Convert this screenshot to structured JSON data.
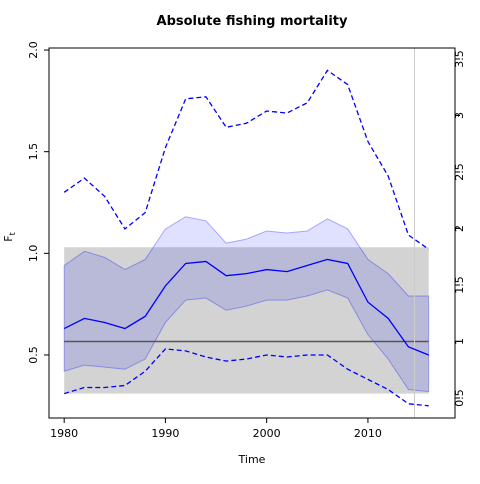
{
  "chart_data": {
    "type": "line",
    "title": "Absolute fishing mortality",
    "xlabel": "Time",
    "ylabel": "F",
    "ylabel_sub": "t",
    "x": [
      1980,
      1982,
      1984,
      1986,
      1988,
      1990,
      1992,
      1994,
      1996,
      1998,
      2000,
      2002,
      2004,
      2006,
      2008,
      2010,
      2012,
      2014,
      2016
    ],
    "series": [
      {
        "color": "#0000ff",
        "style": "solid",
        "values": [
          0.63,
          0.68,
          0.66,
          0.63,
          0.69,
          0.84,
          0.95,
          0.96,
          0.89,
          0.9,
          0.92,
          0.91,
          0.94,
          0.97,
          0.95,
          0.76,
          0.68,
          0.54,
          0.5
        ]
      },
      {
        "color": "#0000ff",
        "style": "dashed",
        "values": [
          1.3,
          1.37,
          1.28,
          1.12,
          1.2,
          1.52,
          1.76,
          1.77,
          1.62,
          1.64,
          1.7,
          1.69,
          1.74,
          1.9,
          1.83,
          1.55,
          1.38,
          1.09,
          1.02
        ]
      },
      {
        "color": "#0000ff",
        "style": "dashed",
        "values": [
          0.31,
          0.34,
          0.34,
          0.35,
          0.42,
          0.53,
          0.52,
          0.49,
          0.47,
          0.48,
          0.5,
          0.49,
          0.5,
          0.5,
          0.43,
          0.38,
          0.33,
          0.26,
          0.25
        ]
      }
    ],
    "band": {
      "color": "#0000ff",
      "upper": [
        0.94,
        1.01,
        0.98,
        0.92,
        0.97,
        1.12,
        1.18,
        1.16,
        1.05,
        1.07,
        1.11,
        1.1,
        1.11,
        1.17,
        1.12,
        0.97,
        0.9,
        0.79,
        0.79
      ],
      "lower": [
        0.42,
        0.45,
        0.44,
        0.43,
        0.48,
        0.66,
        0.77,
        0.78,
        0.72,
        0.74,
        0.77,
        0.77,
        0.79,
        0.82,
        0.78,
        0.6,
        0.48,
        0.33,
        0.32
      ]
    },
    "shaded_region": {
      "color": "#d3d3d3",
      "x": [
        1980,
        2016
      ],
      "y": [
        0.31,
        1.03
      ]
    },
    "reference_line": {
      "color": "#555555",
      "axis": "y2",
      "value": 1,
      "x": [
        1980,
        2016
      ]
    },
    "vline": {
      "color": "#cccccc",
      "value": 2014.6
    },
    "xlim": [
      1978.5,
      2018.6
    ],
    "xticks": [
      1980,
      1990,
      2000,
      2010
    ],
    "ylim": [
      0.19,
      2.01
    ],
    "yticks": [
      0.5,
      {
        "value": 1,
        "label": "1.0"
      },
      1.5,
      {
        "value": 2,
        "label": "2.0"
      }
    ],
    "y2lim": [
      0.323,
      3.597
    ],
    "y2ticks": [
      0.5,
      1,
      1.5,
      2,
      2.5,
      3,
      3.5
    ]
  }
}
